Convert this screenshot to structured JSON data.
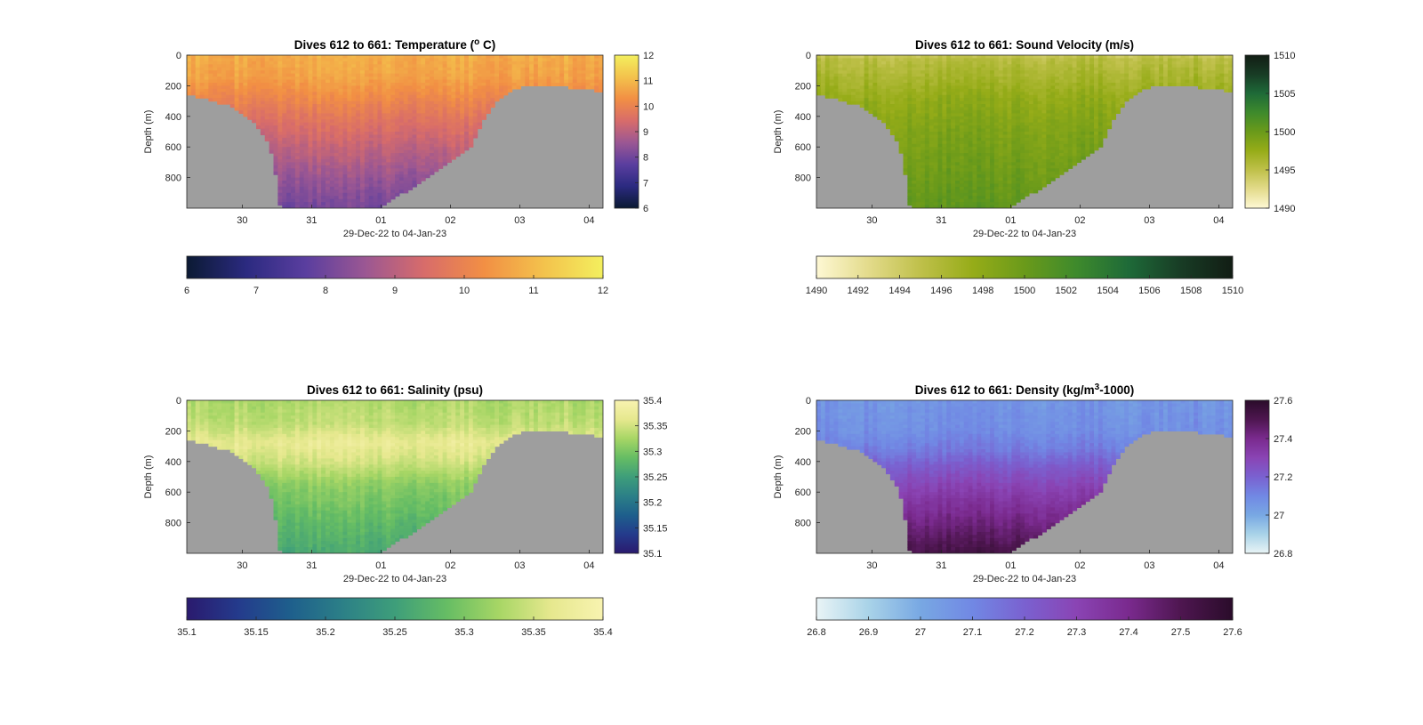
{
  "figure": {
    "background": "#ffffff",
    "land_color": "#9e9e9e"
  },
  "chart_data": [
    {
      "type": "heatmap",
      "name": "temperature",
      "title_prefix": "Dives 612 to 661: Temperature (",
      "title_sup": "o",
      "title_suffix": " C)",
      "xlabel": "29-Dec-22 to 04-Jan-23",
      "ylabel": "Depth (m)",
      "xlim": [
        29.2,
        35.2
      ],
      "ylim": [
        0,
        1000
      ],
      "x_ticks": [
        30,
        31,
        32,
        33,
        34,
        35
      ],
      "x_tick_labels": [
        "30",
        "31",
        "01",
        "02",
        "03",
        "04"
      ],
      "y_ticks": [
        0,
        200,
        400,
        600,
        800
      ],
      "y_tick_labels": [
        "0",
        "200",
        "400",
        "600",
        "800"
      ],
      "colormap": [
        "#0b1a33",
        "#2b2a80",
        "#5a3e9f",
        "#9b5793",
        "#d86c6a",
        "#f28f44",
        "#f3c24c",
        "#f3ef5e"
      ],
      "clim": [
        6,
        12
      ],
      "colorbar_ticks": [
        6,
        7,
        8,
        9,
        10,
        11,
        12
      ],
      "colorbar_tick_labels": [
        "6",
        "7",
        "8",
        "9",
        "10",
        "11",
        "12"
      ],
      "profile": {
        "depths": [
          0,
          150,
          260,
          400,
          600,
          800,
          1000
        ],
        "values": [
          10.8,
          10.6,
          10.2,
          9.7,
          9.1,
          8.5,
          8.0
        ]
      }
    },
    {
      "type": "heatmap",
      "name": "sound-velocity",
      "title_prefix": "Dives 612 to 661: Sound Velocity (m/s)",
      "title_sup": "",
      "title_suffix": "",
      "xlabel": "29-Dec-22 to 04-Jan-23",
      "ylabel": "Depth (m)",
      "xlim": [
        29.2,
        35.2
      ],
      "ylim": [
        0,
        1000
      ],
      "x_ticks": [
        30,
        31,
        32,
        33,
        34,
        35
      ],
      "x_tick_labels": [
        "30",
        "31",
        "01",
        "02",
        "03",
        "04"
      ],
      "y_ticks": [
        0,
        200,
        400,
        600,
        800
      ],
      "y_tick_labels": [
        "0",
        "200",
        "400",
        "600",
        "800"
      ],
      "colormap": [
        "#fef8d4",
        "#e3db8b",
        "#bfc04a",
        "#96ac18",
        "#6a9a1a",
        "#3e8a2c",
        "#1e6a38",
        "#183c25",
        "#121d14"
      ],
      "clim": [
        1490,
        1510
      ],
      "colorbar_ticks": [
        1490,
        1492,
        1494,
        1496,
        1498,
        1500,
        1502,
        1504,
        1506,
        1508,
        1510
      ],
      "colorbar_tick_labels": [
        "1490",
        "1492",
        "1494",
        "1496",
        "1498",
        "1500",
        "1502",
        "1504",
        "1506",
        "1508",
        "1510"
      ],
      "vertical_colorbar_ticks": [
        1490,
        1495,
        1500,
        1505,
        1510
      ],
      "vertical_colorbar_tick_labels": [
        "1490",
        "1495",
        "1500",
        "1505",
        "1510"
      ],
      "profile": {
        "depths": [
          0,
          30,
          150,
          300,
          500,
          800,
          1000
        ],
        "values": [
          1494.5,
          1495.5,
          1496.5,
          1497.8,
          1498.8,
          1499.8,
          1500.5
        ]
      }
    },
    {
      "type": "heatmap",
      "name": "salinity",
      "title_prefix": "Dives 612 to 661: Salinity (psu)",
      "title_sup": "",
      "title_suffix": "",
      "xlabel": "29-Dec-22 to 04-Jan-23",
      "ylabel": "Depth (m)",
      "xlim": [
        29.2,
        35.2
      ],
      "ylim": [
        0,
        1000
      ],
      "x_ticks": [
        30,
        31,
        32,
        33,
        34,
        35
      ],
      "x_tick_labels": [
        "30",
        "31",
        "01",
        "02",
        "03",
        "04"
      ],
      "y_ticks": [
        0,
        200,
        400,
        600,
        800
      ],
      "y_tick_labels": [
        "0",
        "200",
        "400",
        "600",
        "800"
      ],
      "colormap": [
        "#2a1a6e",
        "#243b8c",
        "#1e5f8c",
        "#2c8087",
        "#3e9e7a",
        "#66bd64",
        "#a7d665",
        "#e6e88e",
        "#f8f3b0"
      ],
      "clim": [
        35.1,
        35.4
      ],
      "colorbar_ticks": [
        35.1,
        35.15,
        35.2,
        35.25,
        35.3,
        35.35,
        35.4
      ],
      "colorbar_tick_labels": [
        "35.1",
        "35.15",
        "35.2",
        "35.25",
        "35.3",
        "35.35",
        "35.4"
      ],
      "profile": {
        "depths": [
          0,
          150,
          280,
          400,
          550,
          800,
          1000
        ],
        "values": [
          35.33,
          35.34,
          35.37,
          35.35,
          35.31,
          35.28,
          35.26
        ]
      }
    },
    {
      "type": "heatmap",
      "name": "density",
      "title_prefix": "Dives 612 to 661: Density (kg/m",
      "title_sup": "3",
      "title_suffix": "-1000)",
      "xlabel": "29-Dec-22 to 04-Jan-23",
      "ylabel": "Depth (m)",
      "xlim": [
        29.2,
        35.2
      ],
      "ylim": [
        0,
        1000
      ],
      "x_ticks": [
        30,
        31,
        32,
        33,
        34,
        35
      ],
      "x_tick_labels": [
        "30",
        "31",
        "01",
        "02",
        "03",
        "04"
      ],
      "y_ticks": [
        0,
        200,
        400,
        600,
        800
      ],
      "y_tick_labels": [
        "0",
        "200",
        "400",
        "600",
        "800"
      ],
      "colormap": [
        "#e9f4f6",
        "#a9d3e8",
        "#78a8e3",
        "#7188e4",
        "#7a61d0",
        "#8a44b4",
        "#7a2a8e",
        "#4e1650",
        "#2a0c2a"
      ],
      "clim": [
        26.8,
        27.6
      ],
      "colorbar_ticks": [
        26.8,
        26.9,
        27,
        27.1,
        27.2,
        27.3,
        27.4,
        27.5,
        27.6
      ],
      "colorbar_tick_labels": [
        "26.8",
        "26.9",
        "27",
        "27.1",
        "27.2",
        "27.3",
        "27.4",
        "27.5",
        "27.6"
      ],
      "vertical_colorbar_ticks": [
        26.8,
        27,
        27.2,
        27.4,
        27.6
      ],
      "vertical_colorbar_tick_labels": [
        "26.8",
        "27",
        "27.2",
        "27.4",
        "27.6"
      ],
      "profile": {
        "depths": [
          0,
          200,
          320,
          450,
          600,
          800,
          1000
        ],
        "values": [
          27.06,
          27.08,
          27.13,
          27.23,
          27.32,
          27.42,
          27.52
        ]
      }
    }
  ],
  "bathymetry": {
    "note_label": "",
    "x": [
      29.2,
      29.4,
      29.6,
      29.8,
      30.0,
      30.2,
      30.35,
      30.45,
      30.55,
      32.0,
      33.3,
      33.45,
      33.6,
      33.75,
      33.9,
      34.1,
      34.3,
      34.5,
      34.7,
      34.9,
      35.2
    ],
    "depth": [
      260,
      280,
      300,
      330,
      380,
      460,
      560,
      680,
      1000,
      1000,
      600,
      440,
      340,
      270,
      220,
      200,
      200,
      205,
      210,
      220,
      235
    ]
  }
}
